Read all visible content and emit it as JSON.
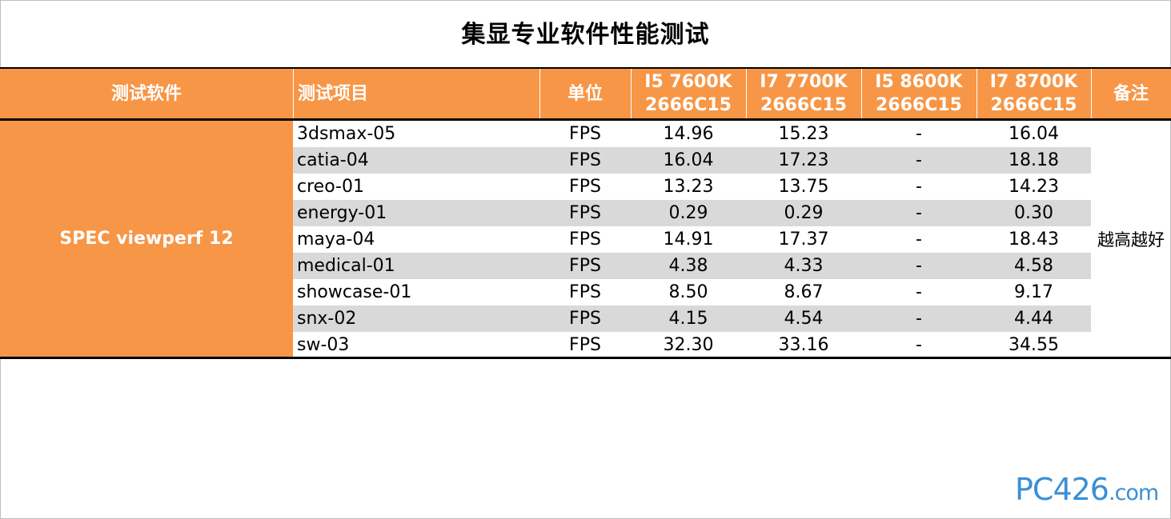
{
  "chart_data": {
    "type": "table",
    "title": "集显专业软件性能测试",
    "columns": [
      "测试软件",
      "测试项目",
      "单位",
      "I5 7600K\n2666C15",
      "I7 7700K\n2666C15",
      "I5 8600K\n2666C15",
      "I7 8700K\n2666C15",
      "备注"
    ],
    "software": "SPEC viewperf 12",
    "note": "越高越好",
    "rows": [
      {
        "test": "3dsmax-05",
        "unit": "FPS",
        "values": [
          "14.96",
          "15.23",
          "-",
          "16.04"
        ]
      },
      {
        "test": "catia-04",
        "unit": "FPS",
        "values": [
          "16.04",
          "17.23",
          "-",
          "18.18"
        ]
      },
      {
        "test": "creo-01",
        "unit": "FPS",
        "values": [
          "13.23",
          "13.75",
          "-",
          "14.23"
        ]
      },
      {
        "test": "energy-01",
        "unit": "FPS",
        "values": [
          "0.29",
          "0.29",
          "-",
          "0.30"
        ]
      },
      {
        "test": "maya-04",
        "unit": "FPS",
        "values": [
          "14.91",
          "17.37",
          "-",
          "18.43"
        ]
      },
      {
        "test": "medical-01",
        "unit": "FPS",
        "values": [
          "4.38",
          "4.33",
          "-",
          "4.58"
        ]
      },
      {
        "test": "showcase-01",
        "unit": "FPS",
        "values": [
          "8.50",
          "8.67",
          "-",
          "9.17"
        ]
      },
      {
        "test": "snx-02",
        "unit": "FPS",
        "values": [
          "4.15",
          "4.54",
          "-",
          "4.44"
        ]
      },
      {
        "test": "sw-03",
        "unit": "FPS",
        "values": [
          "32.30",
          "33.16",
          "-",
          "34.55"
        ]
      }
    ]
  },
  "header": {
    "software": "测试软件",
    "test": "测试项目",
    "unit": "单位",
    "cpu1_line1": "I5 7600K",
    "cpu1_line2": "2666C15",
    "cpu2_line1": "I7 7700K",
    "cpu2_line2": "2666C15",
    "cpu3_line1": "I5 8600K",
    "cpu3_line2": "2666C15",
    "cpu4_line1": "I7 8700K",
    "cpu4_line2": "2666C15",
    "note": "备注"
  },
  "watermark": {
    "main": "PC426",
    "suffix": ".com"
  },
  "colors": {
    "header_background": "#f79646",
    "header_text": "#ffffff",
    "alternate_row": "#d9d9d9",
    "rule": "#000000",
    "watermark": "#3a8fd6"
  }
}
